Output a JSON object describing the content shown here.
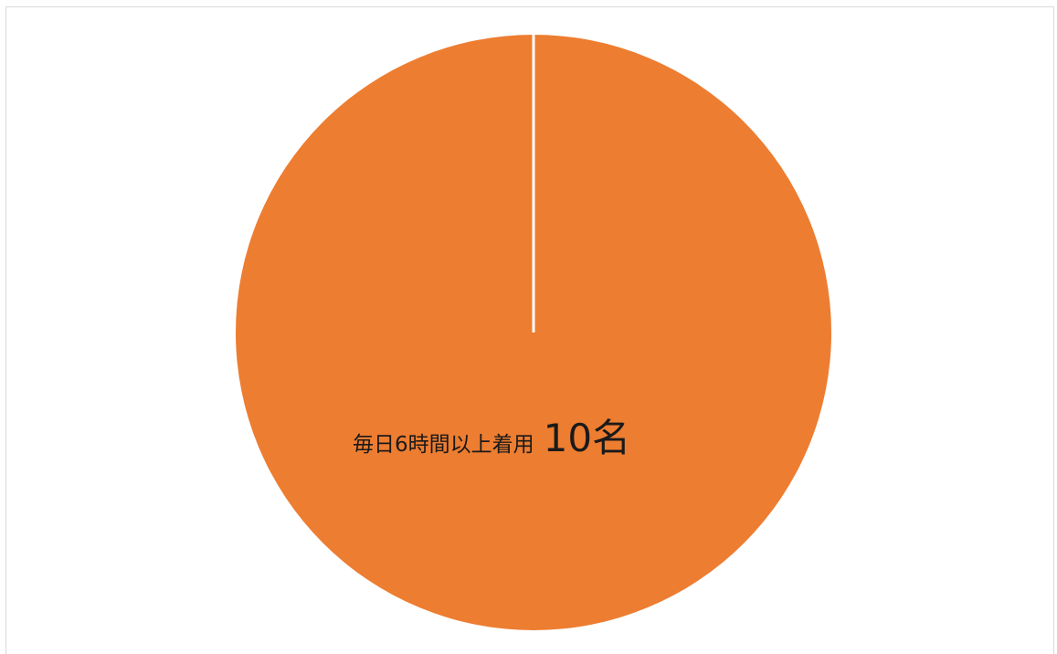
{
  "chart_data": {
    "type": "pie",
    "slices": [
      {
        "label": "毎日6時間以上着用",
        "value": 10,
        "value_label": "10名",
        "color": "#ED7D31"
      }
    ],
    "title": "",
    "legend": "none"
  },
  "colors": {
    "slice_fill": "#ED7D31",
    "separator": "#ffffff",
    "frame_border": "#d9d9d9"
  }
}
